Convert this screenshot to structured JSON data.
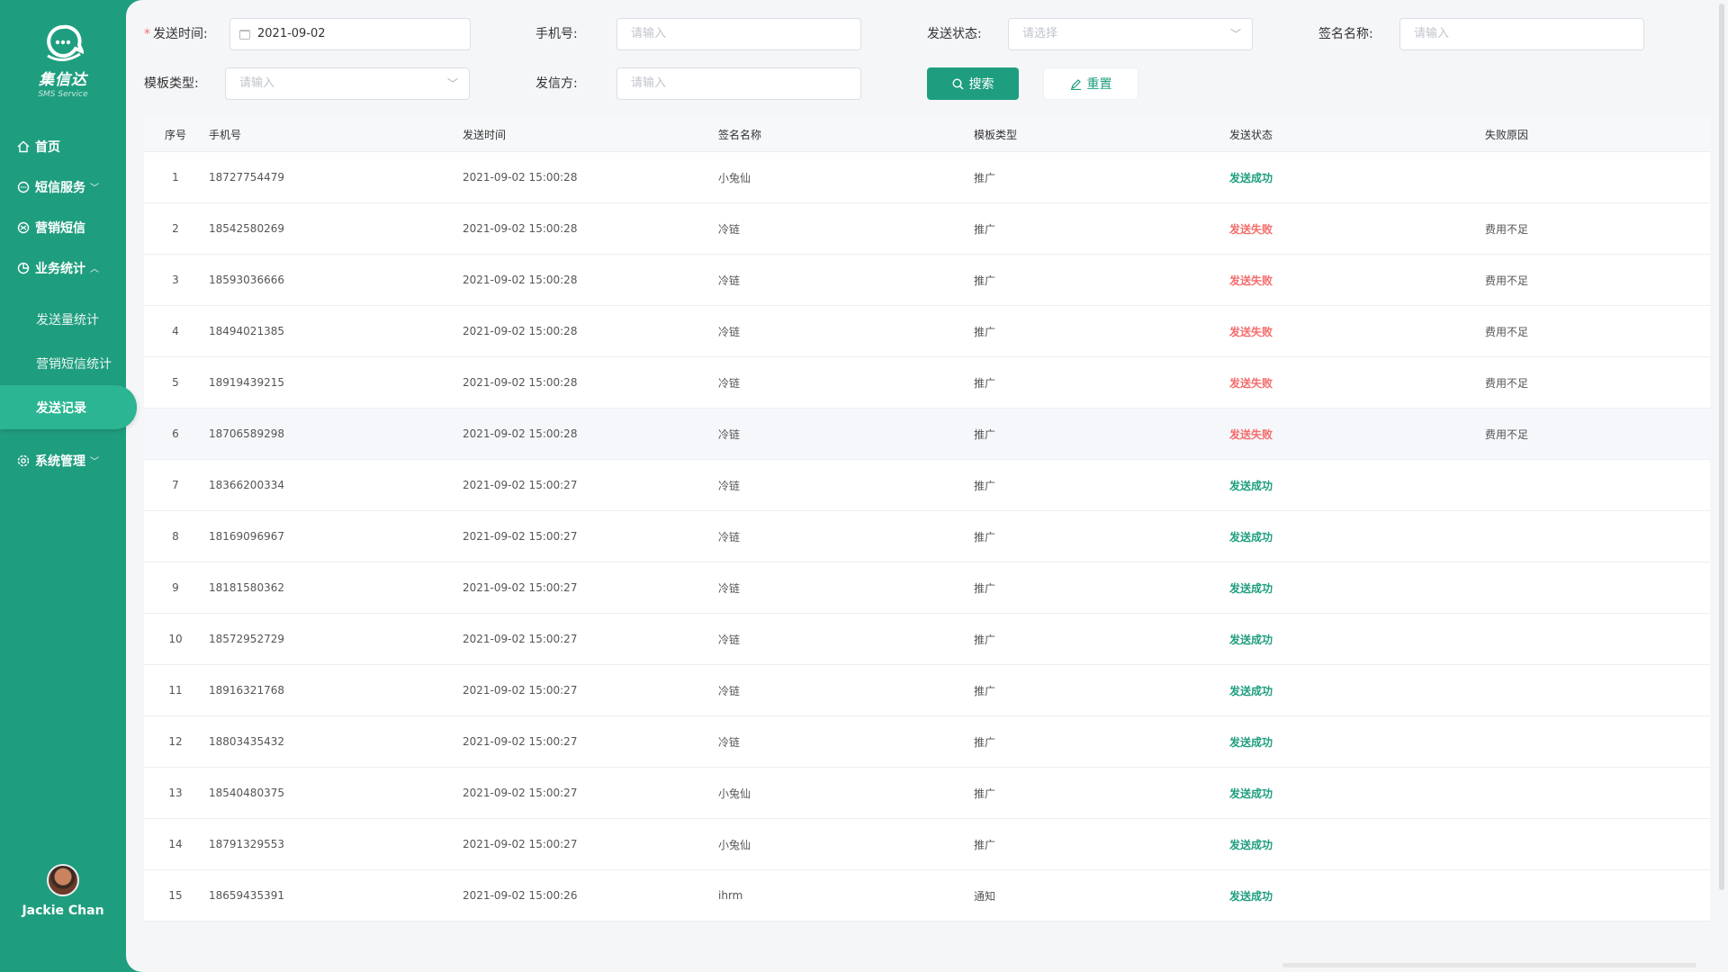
{
  "brand": {
    "name": "集信达",
    "sub": "SMS Service"
  },
  "nav": {
    "home": "首页",
    "sms_service": "短信服务",
    "marketing_sms": "营销短信",
    "business_stats": "业务统计",
    "sub_send_stats": "发送量统计",
    "sub_marketing_stats": "营销短信统计",
    "sub_send_records": "发送记录",
    "system_mgmt": "系统管理"
  },
  "user": {
    "name": "Jackie Chan"
  },
  "filters": {
    "send_time_label": "发送时间:",
    "send_time_value": "2021-09-02",
    "phone_label": "手机号:",
    "phone_placeholder": "请输入",
    "status_label": "发送状态:",
    "status_placeholder": "请选择",
    "signature_label": "签名名称:",
    "signature_placeholder": "请输入",
    "template_label": "模板类型:",
    "template_placeholder": "请输入",
    "sender_label": "发信方:",
    "sender_placeholder": "请输入",
    "search_btn": "搜索",
    "reset_btn": "重置"
  },
  "table": {
    "headers": [
      "序号",
      "手机号",
      "发送时间",
      "签名名称",
      "模板类型",
      "发送状态",
      "失败原因"
    ],
    "rows": [
      [
        "1",
        "18727754479",
        "2021-09-02 15:00:28",
        "小兔仙",
        "推广",
        "发送成功",
        ""
      ],
      [
        "2",
        "18542580269",
        "2021-09-02 15:00:28",
        "冷链",
        "推广",
        "发送失败",
        "费用不足"
      ],
      [
        "3",
        "18593036666",
        "2021-09-02 15:00:28",
        "冷链",
        "推广",
        "发送失败",
        "费用不足"
      ],
      [
        "4",
        "18494021385",
        "2021-09-02 15:00:28",
        "冷链",
        "推广",
        "发送失败",
        "费用不足"
      ],
      [
        "5",
        "18919439215",
        "2021-09-02 15:00:28",
        "冷链",
        "推广",
        "发送失败",
        "费用不足"
      ],
      [
        "6",
        "18706589298",
        "2021-09-02 15:00:28",
        "冷链",
        "推广",
        "发送失败",
        "费用不足"
      ],
      [
        "7",
        "18366200334",
        "2021-09-02 15:00:27",
        "冷链",
        "推广",
        "发送成功",
        ""
      ],
      [
        "8",
        "18169096967",
        "2021-09-02 15:00:27",
        "冷链",
        "推广",
        "发送成功",
        ""
      ],
      [
        "9",
        "18181580362",
        "2021-09-02 15:00:27",
        "冷链",
        "推广",
        "发送成功",
        ""
      ],
      [
        "10",
        "18572952729",
        "2021-09-02 15:00:27",
        "冷链",
        "推广",
        "发送成功",
        ""
      ],
      [
        "11",
        "18916321768",
        "2021-09-02 15:00:27",
        "冷链",
        "推广",
        "发送成功",
        ""
      ],
      [
        "12",
        "18803435432",
        "2021-09-02 15:00:27",
        "冷链",
        "推广",
        "发送成功",
        ""
      ],
      [
        "13",
        "18540480375",
        "2021-09-02 15:00:27",
        "小兔仙",
        "推广",
        "发送成功",
        ""
      ],
      [
        "14",
        "18791329553",
        "2021-09-02 15:00:27",
        "小兔仙",
        "推广",
        "发送成功",
        ""
      ],
      [
        "15",
        "18659435391",
        "2021-09-02 15:00:26",
        "ihrm",
        "通知",
        "发送成功",
        ""
      ]
    ]
  },
  "colors": {
    "primary": "#1f9e7f",
    "fail": "#f56c6c"
  }
}
